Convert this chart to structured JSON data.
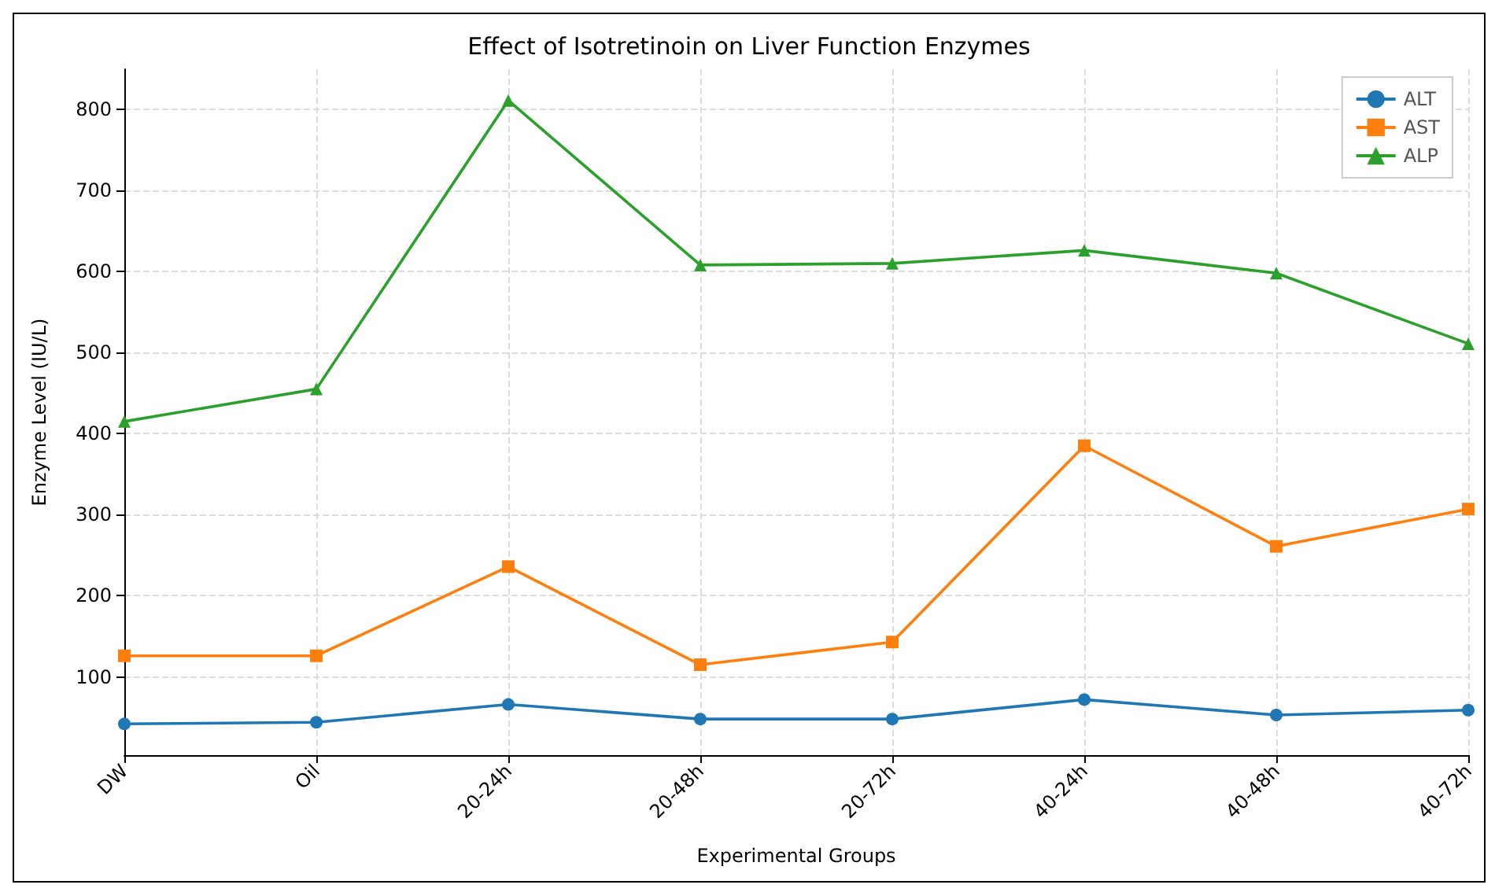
{
  "chart_data": {
    "type": "line",
    "title": "Effect of Isotretinoin on Liver Function Enzymes",
    "xlabel": "Experimental Groups",
    "ylabel": "Enzyme Level (IU/L)",
    "categories": [
      "DW",
      "Oil",
      "20-24h",
      "20-48h",
      "20-72h",
      "40-24h",
      "40-48h",
      "40-72h"
    ],
    "series": [
      {
        "name": "ALT",
        "color": "#1f77b4",
        "marker": "circle",
        "values": [
          42,
          44,
          66,
          48,
          48,
          72,
          53,
          59
        ]
      },
      {
        "name": "AST",
        "color": "#ff7f0e",
        "marker": "square",
        "values": [
          126,
          126,
          236,
          115,
          143,
          385,
          261,
          307
        ]
      },
      {
        "name": "ALP",
        "color": "#2ca02c",
        "marker": "triangle",
        "values": [
          415,
          455,
          811,
          608,
          610,
          626,
          598,
          511
        ]
      }
    ],
    "ylim": [
      3.5,
      849.5
    ],
    "yticks": [
      100,
      200,
      300,
      400,
      500,
      600,
      700,
      800
    ],
    "grid": true,
    "legend": "top right",
    "line_style": "solid"
  }
}
